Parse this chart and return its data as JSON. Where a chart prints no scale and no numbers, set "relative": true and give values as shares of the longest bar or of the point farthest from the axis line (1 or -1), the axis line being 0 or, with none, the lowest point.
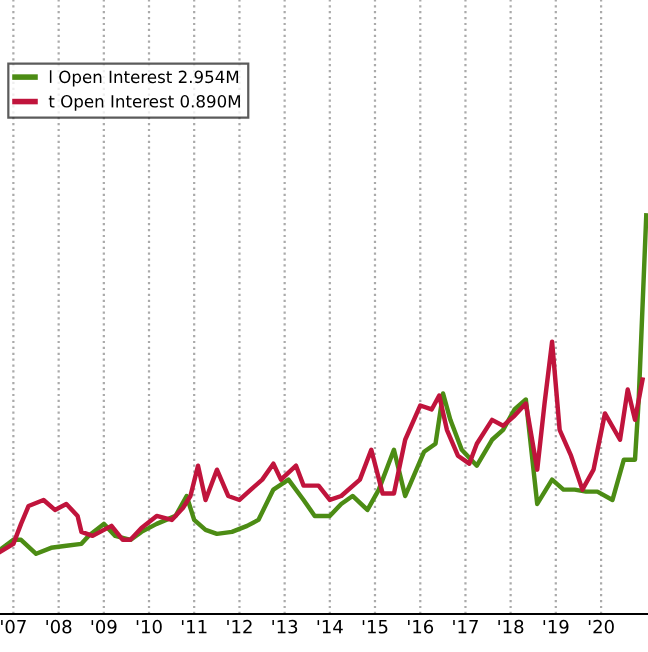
{
  "chart_data": {
    "type": "line",
    "relative": true,
    "grid": "x",
    "legend": "top left",
    "line_style": "solid",
    "marker": "none",
    "xlim": [
      "2007-03-15",
      "2021-07-15"
    ],
    "xticks": [
      {
        "value": "2007-07-01",
        "label": "'07"
      },
      {
        "value": "2008-07-01",
        "label": "'08"
      },
      {
        "value": "2009-07-01",
        "label": "'09"
      },
      {
        "value": "2010-07-01",
        "label": "'10"
      },
      {
        "value": "2011-07-01",
        "label": "'11"
      },
      {
        "value": "2012-07-01",
        "label": "'12"
      },
      {
        "value": "2013-07-01",
        "label": "'13"
      },
      {
        "value": "2014-07-01",
        "label": "'14"
      },
      {
        "value": "2015-07-01",
        "label": "'15"
      },
      {
        "value": "2016-07-01",
        "label": "'16"
      },
      {
        "value": "2017-07-01",
        "label": "'17"
      },
      {
        "value": "2018-07-01",
        "label": "'18"
      },
      {
        "value": "2019-07-01",
        "label": "'19"
      },
      {
        "value": "2020-07-01",
        "label": "'20"
      }
    ],
    "series": [
      {
        "name": "l Open Interest 2.954M",
        "color": "#4c8c14",
        "x": [
          "2007-03-15",
          "2007-07",
          "2007-09",
          "2008-01",
          "2008-05",
          "2008-09",
          "2009-01",
          "2009-03",
          "2009-07",
          "2009-10",
          "2010-02",
          "2010-05",
          "2010-09",
          "2011-02",
          "2011-05",
          "2011-07",
          "2011-10",
          "2012-01",
          "2012-05",
          "2012-09",
          "2012-12",
          "2013-04",
          "2013-08",
          "2013-12",
          "2014-03",
          "2014-07",
          "2014-10",
          "2015-01",
          "2015-05",
          "2015-08",
          "2015-12",
          "2016-03",
          "2016-08",
          "2016-11",
          "2017-01",
          "2017-03",
          "2017-06",
          "2017-10",
          "2018-02",
          "2018-05",
          "2018-08",
          "2018-11",
          "2019-02",
          "2019-06",
          "2019-09",
          "2019-12",
          "2020-03",
          "2020-06",
          "2020-10",
          "2021-01",
          "2021-04",
          "2021-05",
          "2021-07"
        ],
        "values": [
          0.161,
          0.186,
          0.186,
          0.151,
          0.166,
          0.171,
          0.176,
          0.196,
          0.226,
          0.196,
          0.186,
          0.206,
          0.226,
          0.246,
          0.296,
          0.236,
          0.211,
          0.201,
          0.206,
          0.221,
          0.236,
          0.312,
          0.337,
          0.286,
          0.246,
          0.246,
          0.276,
          0.296,
          0.261,
          0.312,
          0.412,
          0.296,
          0.407,
          0.427,
          0.553,
          0.487,
          0.412,
          0.372,
          0.437,
          0.462,
          0.513,
          0.538,
          0.276,
          0.337,
          0.312,
          0.312,
          0.307,
          0.307,
          0.286,
          0.387,
          0.387,
          0.538,
          1.0
        ]
      },
      {
        "name": "t Open Interest 0.890M",
        "color": "#c0143c",
        "x": [
          "2007-03-15",
          "2007-07",
          "2007-09",
          "2007-11",
          "2008-03",
          "2008-06",
          "2008-09",
          "2008-12",
          "2009-01",
          "2009-04",
          "2009-09",
          "2009-12",
          "2010-02",
          "2010-05",
          "2010-09",
          "2011-01",
          "2011-04",
          "2011-06",
          "2011-08",
          "2011-10",
          "2012-01",
          "2012-04",
          "2012-07",
          "2012-10",
          "2013-01",
          "2013-04",
          "2013-06",
          "2013-10",
          "2013-12",
          "2014-04",
          "2014-07",
          "2014-10",
          "2015-03",
          "2015-06",
          "2015-09",
          "2015-12",
          "2016-03",
          "2016-07",
          "2016-10",
          "2016-12",
          "2017-02",
          "2017-05",
          "2017-08",
          "2017-10",
          "2018-02",
          "2018-05",
          "2018-08",
          "2018-11",
          "2019-02",
          "2019-04",
          "2019-06",
          "2019-08",
          "2019-11",
          "2020-02",
          "2020-05",
          "2020-08",
          "2020-12",
          "2021-02",
          "2021-04",
          "2021-06"
        ],
        "values": [
          0.156,
          0.176,
          0.226,
          0.271,
          0.286,
          0.261,
          0.276,
          0.246,
          0.206,
          0.196,
          0.221,
          0.186,
          0.186,
          0.216,
          0.246,
          0.236,
          0.266,
          0.296,
          0.372,
          0.286,
          0.362,
          0.296,
          0.286,
          0.312,
          0.337,
          0.377,
          0.337,
          0.372,
          0.322,
          0.322,
          0.286,
          0.296,
          0.337,
          0.412,
          0.302,
          0.302,
          0.437,
          0.523,
          0.513,
          0.548,
          0.462,
          0.397,
          0.377,
          0.427,
          0.487,
          0.472,
          0.497,
          0.528,
          0.362,
          0.528,
          0.683,
          0.462,
          0.397,
          0.312,
          0.362,
          0.503,
          0.437,
          0.563,
          0.487,
          0.588
        ]
      }
    ]
  }
}
